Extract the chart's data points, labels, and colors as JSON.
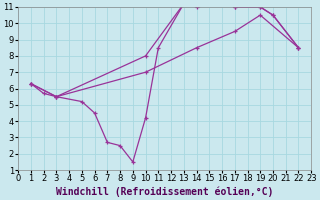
{
  "xlabel": "Windchill (Refroidissement éolien,°C)",
  "background_color": "#cbe8ee",
  "line_color": "#993399",
  "xlim": [
    0,
    23
  ],
  "ylim": [
    1,
    11
  ],
  "xticks": [
    0,
    1,
    2,
    3,
    4,
    5,
    6,
    7,
    8,
    9,
    10,
    11,
    12,
    13,
    14,
    15,
    16,
    17,
    18,
    19,
    20,
    21,
    22,
    23
  ],
  "yticks": [
    1,
    2,
    3,
    4,
    5,
    6,
    7,
    8,
    9,
    10,
    11
  ],
  "line1_x": [
    1,
    2,
    3,
    5,
    6,
    7,
    8,
    9,
    10,
    11,
    13,
    14,
    16,
    17,
    19,
    20,
    22
  ],
  "line1_y": [
    6.3,
    5.7,
    5.5,
    5.2,
    4.5,
    2.7,
    2.5,
    1.5,
    4.2,
    8.5,
    11.2,
    11.0,
    11.2,
    11.0,
    11.0,
    10.5,
    8.5
  ],
  "line2_x": [
    1,
    3,
    10,
    14,
    17,
    19,
    22
  ],
  "line2_y": [
    6.3,
    5.5,
    7.0,
    8.5,
    9.5,
    10.5,
    8.5
  ],
  "line3_x": [
    1,
    3,
    10,
    13,
    16,
    17,
    19,
    20,
    22
  ],
  "line3_y": [
    6.3,
    5.5,
    8.0,
    11.2,
    11.2,
    11.0,
    11.0,
    10.5,
    8.5
  ],
  "grid_color": "#a8d8e0",
  "tick_fontsize": 6,
  "xlabel_fontsize": 7,
  "marker": "+"
}
